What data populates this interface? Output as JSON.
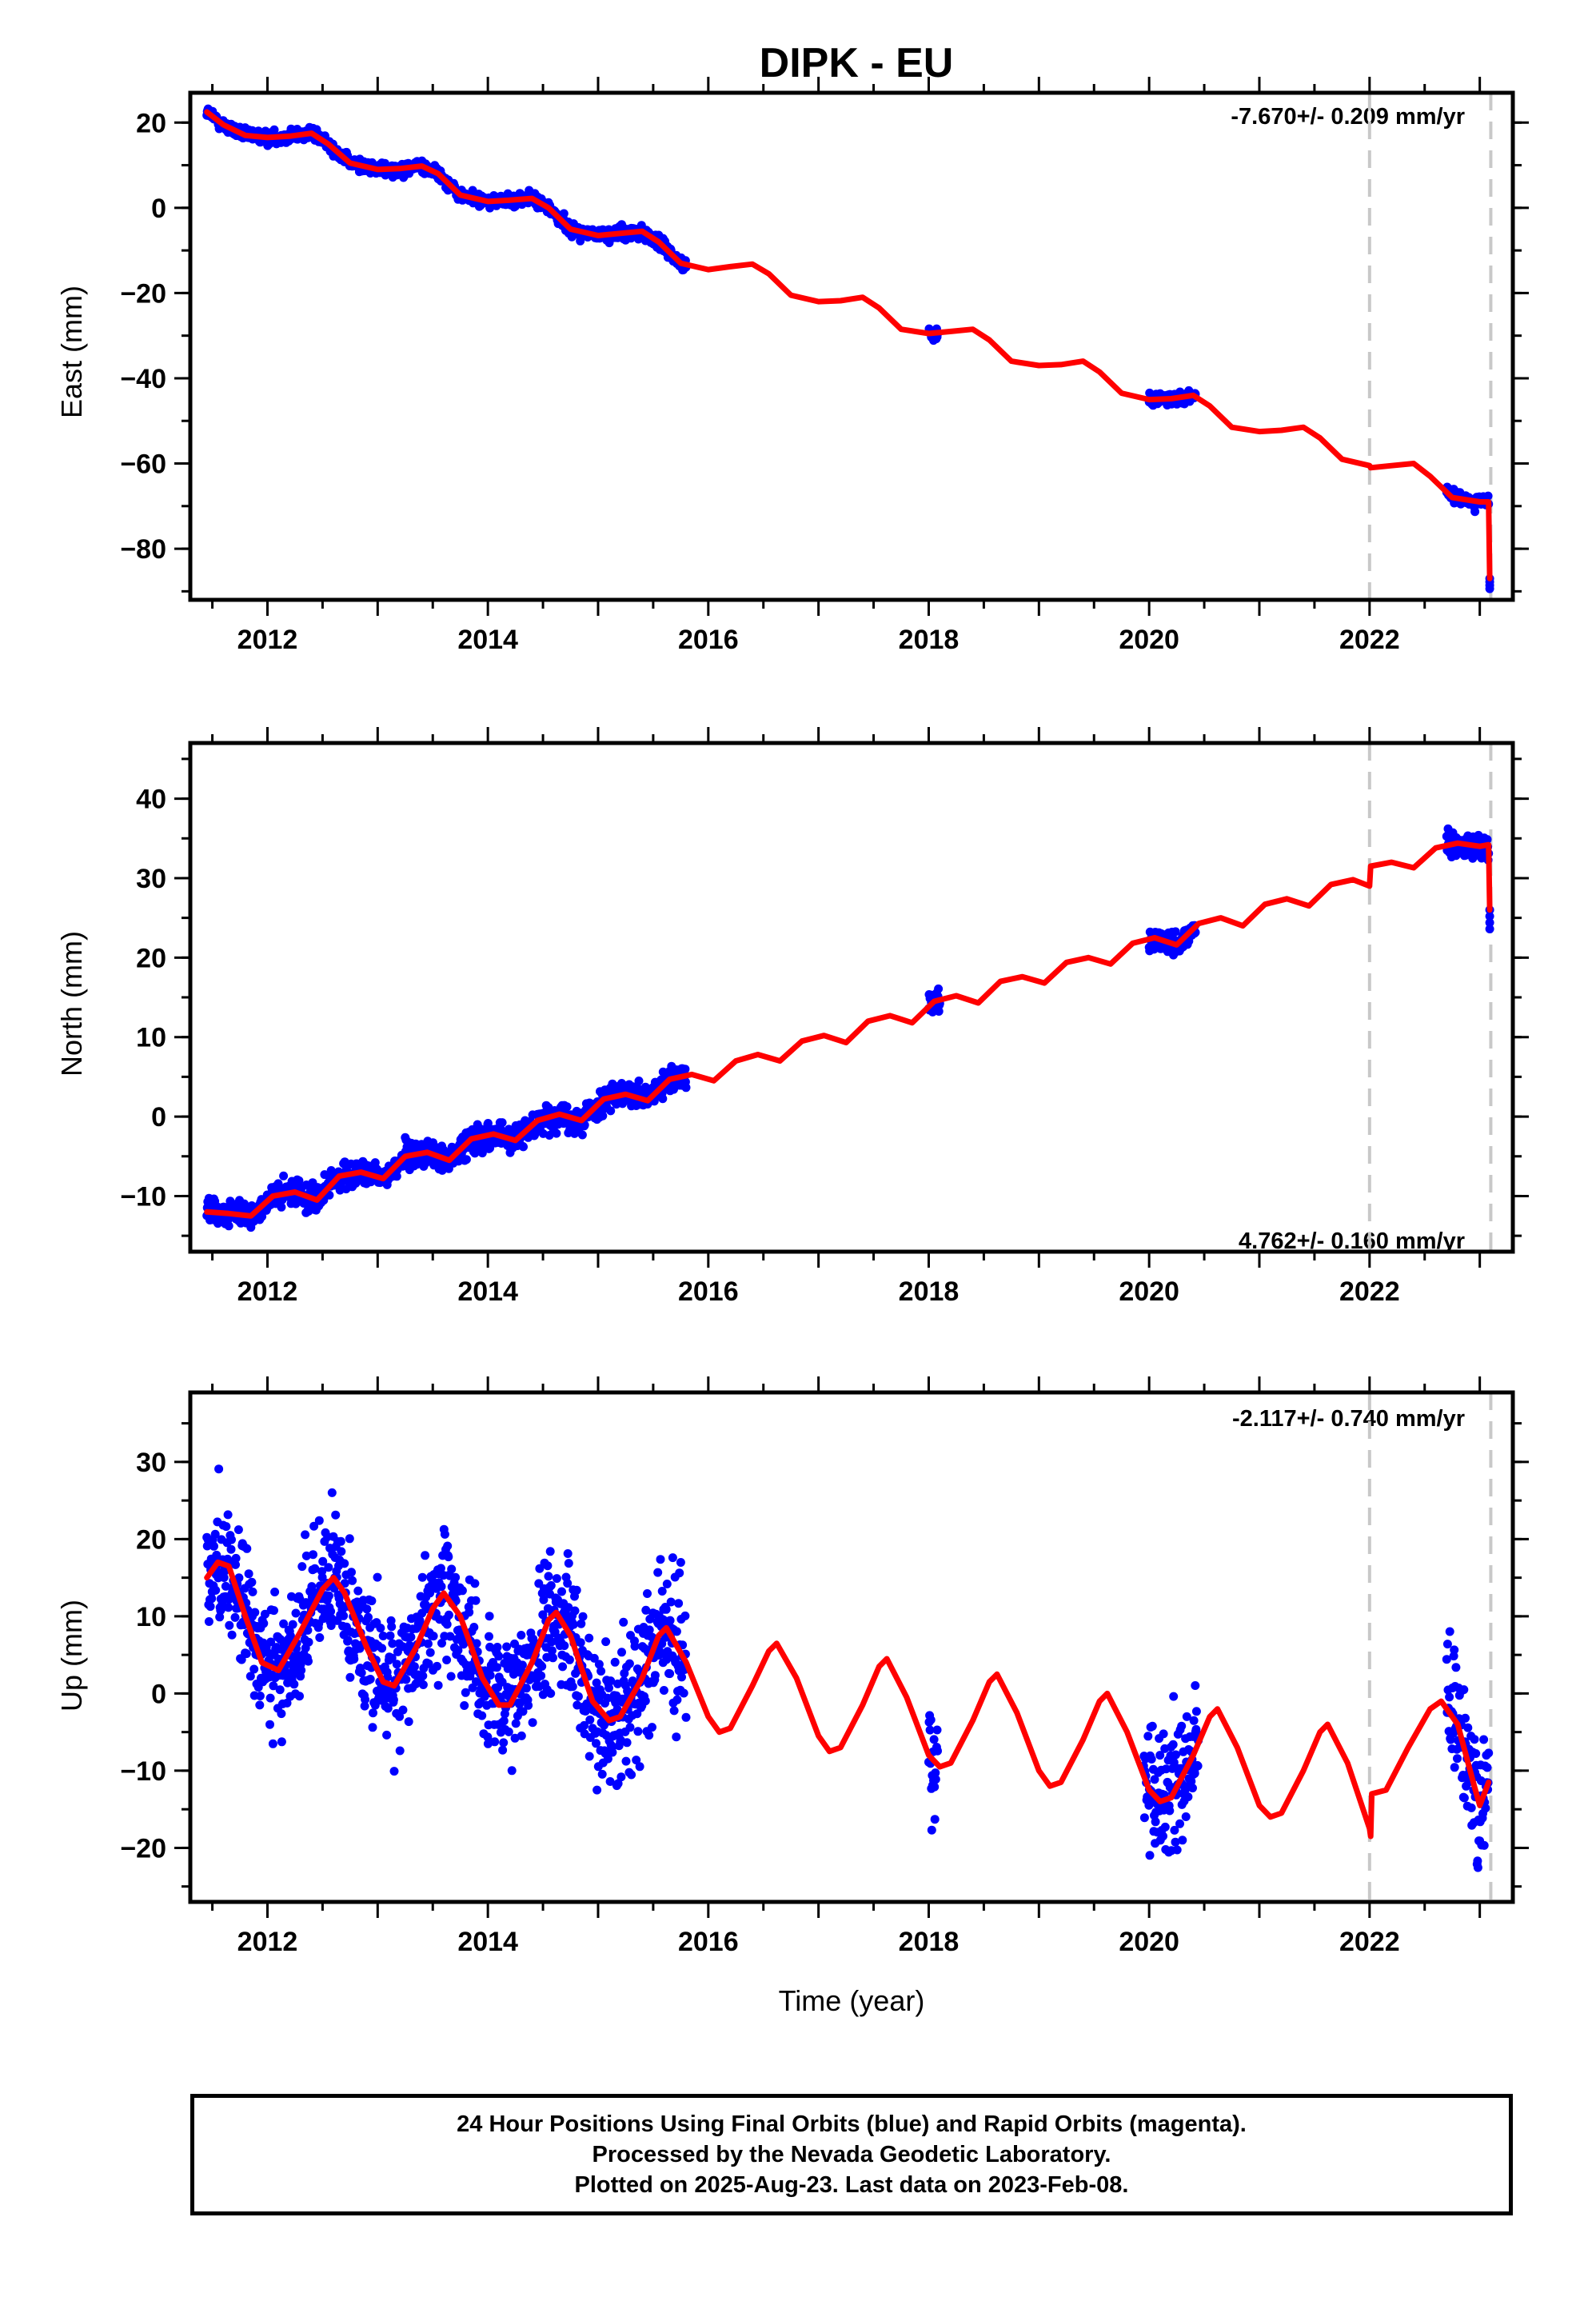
{
  "chart_data": {
    "type": "scatter",
    "title": "DIPK - EU",
    "xlabel": "Time (year)",
    "x_ticks": [
      2012,
      2014,
      2016,
      2018,
      2020,
      2022
    ],
    "xlim": [
      2011.3,
      2023.3
    ],
    "dashed_lines_x": [
      2022.0,
      2023.1
    ],
    "colors": {
      "data": "#0000ff",
      "model": "#ff0000",
      "dashed": "#c8c8c8"
    },
    "panels": [
      {
        "name": "east",
        "ylabel": "East (mm)",
        "ylim": [
          -92,
          27
        ],
        "y_ticks": [
          20,
          0,
          -20,
          -40,
          -60,
          -80
        ],
        "rate": "-7.670+/- 0.209 mm/yr",
        "rate_position": "top-right",
        "model": [
          [
            2011.45,
            22.5
          ],
          [
            2011.6,
            19.5
          ],
          [
            2011.8,
            17.0
          ],
          [
            2012.0,
            16.5
          ],
          [
            2012.2,
            16.8
          ],
          [
            2012.4,
            17.5
          ],
          [
            2012.55,
            15.0
          ],
          [
            2012.75,
            10.5
          ],
          [
            2013.0,
            9.0
          ],
          [
            2013.2,
            9.2
          ],
          [
            2013.4,
            9.8
          ],
          [
            2013.55,
            8.0
          ],
          [
            2013.75,
            3.0
          ],
          [
            2014.0,
            1.5
          ],
          [
            2014.2,
            1.8
          ],
          [
            2014.4,
            2.2
          ],
          [
            2014.55,
            0.0
          ],
          [
            2014.75,
            -5.0
          ],
          [
            2015.0,
            -6.5
          ],
          [
            2015.2,
            -6.0
          ],
          [
            2015.4,
            -5.5
          ],
          [
            2015.55,
            -8.0
          ],
          [
            2015.75,
            -13.0
          ],
          [
            2016.0,
            -14.5
          ],
          [
            2016.2,
            -13.8
          ],
          [
            2016.4,
            -13.2
          ],
          [
            2016.55,
            -15.5
          ],
          [
            2016.75,
            -20.5
          ],
          [
            2017.0,
            -22.0
          ],
          [
            2017.2,
            -21.8
          ],
          [
            2017.4,
            -21.0
          ],
          [
            2017.55,
            -23.5
          ],
          [
            2017.75,
            -28.5
          ],
          [
            2018.0,
            -29.5
          ],
          [
            2018.2,
            -29.0
          ],
          [
            2018.4,
            -28.5
          ],
          [
            2018.55,
            -31.0
          ],
          [
            2018.75,
            -36.0
          ],
          [
            2019.0,
            -37.0
          ],
          [
            2019.2,
            -36.8
          ],
          [
            2019.4,
            -36.0
          ],
          [
            2019.55,
            -38.5
          ],
          [
            2019.75,
            -43.5
          ],
          [
            2020.0,
            -45.0
          ],
          [
            2020.2,
            -44.8
          ],
          [
            2020.4,
            -44.0
          ],
          [
            2020.55,
            -46.5
          ],
          [
            2020.75,
            -51.5
          ],
          [
            2021.0,
            -52.5
          ],
          [
            2021.2,
            -52.2
          ],
          [
            2021.4,
            -51.5
          ],
          [
            2021.55,
            -54.0
          ],
          [
            2021.75,
            -59.0
          ],
          [
            2022.0,
            -60.5
          ],
          [
            2022.01,
            -61.0
          ],
          [
            2022.2,
            -60.5
          ],
          [
            2022.4,
            -60.0
          ],
          [
            2022.55,
            -63.0
          ],
          [
            2022.75,
            -68.0
          ],
          [
            2023.0,
            -69.0
          ],
          [
            2023.08,
            -69.0
          ],
          [
            2023.09,
            -87.0
          ]
        ],
        "observed_spans": [
          [
            2011.45,
            2015.8
          ],
          [
            2018.0,
            2018.08
          ],
          [
            2020.0,
            2020.42
          ],
          [
            2022.7,
            2023.08
          ]
        ],
        "noise_mm": 1.3
      },
      {
        "name": "north",
        "ylabel": "North (mm)",
        "ylim": [
          -17,
          47
        ],
        "y_ticks": [
          40,
          30,
          20,
          10,
          0,
          -10
        ],
        "rate": "4.762+/- 0.160 mm/yr",
        "rate_position": "bottom-right",
        "model": [
          [
            2011.45,
            -12.0
          ],
          [
            2011.65,
            -12.2
          ],
          [
            2011.85,
            -12.5
          ],
          [
            2012.05,
            -10.0
          ],
          [
            2012.25,
            -9.5
          ],
          [
            2012.45,
            -10.5
          ],
          [
            2012.65,
            -7.5
          ],
          [
            2012.85,
            -7.0
          ],
          [
            2013.05,
            -7.8
          ],
          [
            2013.25,
            -5.0
          ],
          [
            2013.45,
            -4.5
          ],
          [
            2013.65,
            -5.5
          ],
          [
            2013.85,
            -2.8
          ],
          [
            2014.05,
            -2.2
          ],
          [
            2014.25,
            -3.0
          ],
          [
            2014.45,
            -0.5
          ],
          [
            2014.65,
            0.3
          ],
          [
            2014.85,
            -0.5
          ],
          [
            2015.05,
            2.2
          ],
          [
            2015.25,
            2.8
          ],
          [
            2015.45,
            2.0
          ],
          [
            2015.65,
            4.7
          ],
          [
            2015.85,
            5.3
          ],
          [
            2016.05,
            4.5
          ],
          [
            2016.25,
            7.0
          ],
          [
            2016.45,
            7.8
          ],
          [
            2016.65,
            7.0
          ],
          [
            2016.85,
            9.5
          ],
          [
            2017.05,
            10.2
          ],
          [
            2017.25,
            9.3
          ],
          [
            2017.45,
            12.0
          ],
          [
            2017.65,
            12.7
          ],
          [
            2017.85,
            11.8
          ],
          [
            2018.05,
            14.5
          ],
          [
            2018.25,
            15.2
          ],
          [
            2018.45,
            14.3
          ],
          [
            2018.65,
            17.0
          ],
          [
            2018.85,
            17.6
          ],
          [
            2019.05,
            16.8
          ],
          [
            2019.25,
            19.4
          ],
          [
            2019.45,
            20.0
          ],
          [
            2019.65,
            19.2
          ],
          [
            2019.85,
            21.8
          ],
          [
            2020.05,
            22.5
          ],
          [
            2020.25,
            21.6
          ],
          [
            2020.45,
            24.3
          ],
          [
            2020.65,
            25.0
          ],
          [
            2020.85,
            24.0
          ],
          [
            2021.05,
            26.7
          ],
          [
            2021.25,
            27.4
          ],
          [
            2021.45,
            26.5
          ],
          [
            2021.65,
            29.2
          ],
          [
            2021.85,
            29.8
          ],
          [
            2022.0,
            29.0
          ],
          [
            2022.01,
            31.5
          ],
          [
            2022.2,
            32.0
          ],
          [
            2022.4,
            31.3
          ],
          [
            2022.6,
            33.8
          ],
          [
            2022.8,
            34.4
          ],
          [
            2023.0,
            34.0
          ],
          [
            2023.08,
            34.2
          ],
          [
            2023.09,
            26.0
          ]
        ],
        "observed_spans": [
          [
            2011.45,
            2015.8
          ],
          [
            2018.0,
            2018.1
          ],
          [
            2020.0,
            2020.42
          ],
          [
            2022.7,
            2023.08
          ]
        ],
        "noise_mm": 1.4
      },
      {
        "name": "up",
        "ylabel": "Up (mm)",
        "ylim": [
          -27,
          39
        ],
        "y_ticks": [
          30,
          20,
          10,
          0,
          -10,
          -20
        ],
        "rate": "-2.117+/- 0.740 mm/yr",
        "rate_position": "top-right",
        "model": [
          [
            2011.45,
            15.0
          ],
          [
            2011.55,
            17.0
          ],
          [
            2011.65,
            16.5
          ],
          [
            2011.8,
            10.0
          ],
          [
            2011.95,
            4.0
          ],
          [
            2012.1,
            3.0
          ],
          [
            2012.3,
            8.0
          ],
          [
            2012.5,
            13.5
          ],
          [
            2012.6,
            15.0
          ],
          [
            2012.7,
            13.0
          ],
          [
            2012.9,
            6.0
          ],
          [
            2013.05,
            1.5
          ],
          [
            2013.15,
            1.0
          ],
          [
            2013.35,
            6.0
          ],
          [
            2013.5,
            11.0
          ],
          [
            2013.6,
            13.0
          ],
          [
            2013.75,
            10.0
          ],
          [
            2013.95,
            2.0
          ],
          [
            2014.1,
            -1.5
          ],
          [
            2014.2,
            -1.5
          ],
          [
            2014.4,
            4.0
          ],
          [
            2014.55,
            9.5
          ],
          [
            2014.62,
            10.5
          ],
          [
            2014.75,
            7.5
          ],
          [
            2014.95,
            -1.0
          ],
          [
            2015.1,
            -3.5
          ],
          [
            2015.2,
            -3.0
          ],
          [
            2015.4,
            2.0
          ],
          [
            2015.55,
            7.5
          ],
          [
            2015.62,
            8.5
          ],
          [
            2015.8,
            4.0
          ],
          [
            2016.0,
            -3.0
          ],
          [
            2016.1,
            -5.0
          ],
          [
            2016.2,
            -4.5
          ],
          [
            2016.4,
            1.0
          ],
          [
            2016.55,
            5.5
          ],
          [
            2016.62,
            6.5
          ],
          [
            2016.8,
            2.0
          ],
          [
            2017.0,
            -5.5
          ],
          [
            2017.1,
            -7.5
          ],
          [
            2017.2,
            -7.0
          ],
          [
            2017.4,
            -1.5
          ],
          [
            2017.55,
            3.5
          ],
          [
            2017.62,
            4.5
          ],
          [
            2017.8,
            -0.5
          ],
          [
            2018.0,
            -8.0
          ],
          [
            2018.1,
            -9.5
          ],
          [
            2018.2,
            -9.0
          ],
          [
            2018.4,
            -3.5
          ],
          [
            2018.55,
            1.5
          ],
          [
            2018.62,
            2.5
          ],
          [
            2018.8,
            -2.5
          ],
          [
            2019.0,
            -10.0
          ],
          [
            2019.1,
            -12.0
          ],
          [
            2019.2,
            -11.5
          ],
          [
            2019.4,
            -6.0
          ],
          [
            2019.55,
            -1.0
          ],
          [
            2019.62,
            0.0
          ],
          [
            2019.8,
            -5.0
          ],
          [
            2020.0,
            -12.5
          ],
          [
            2020.1,
            -14.0
          ],
          [
            2020.2,
            -13.5
          ],
          [
            2020.4,
            -8.0
          ],
          [
            2020.55,
            -3.0
          ],
          [
            2020.62,
            -2.0
          ],
          [
            2020.8,
            -7.0
          ],
          [
            2021.0,
            -14.5
          ],
          [
            2021.1,
            -16.0
          ],
          [
            2021.2,
            -15.5
          ],
          [
            2021.4,
            -10.0
          ],
          [
            2021.55,
            -5.0
          ],
          [
            2021.62,
            -4.0
          ],
          [
            2021.8,
            -9.0
          ],
          [
            2022.0,
            -17.5
          ],
          [
            2022.01,
            -18.5
          ],
          [
            2022.02,
            -13.0
          ],
          [
            2022.15,
            -12.5
          ],
          [
            2022.35,
            -7.0
          ],
          [
            2022.55,
            -2.0
          ],
          [
            2022.65,
            -1.0
          ],
          [
            2022.8,
            -4.0
          ],
          [
            2022.95,
            -12.0
          ],
          [
            2023.0,
            -14.5
          ],
          [
            2023.08,
            -11.5
          ]
        ],
        "observed_spans": [
          [
            2011.45,
            2015.8
          ],
          [
            2018.0,
            2018.08
          ],
          [
            2019.95,
            2020.45
          ],
          [
            2022.7,
            2023.08
          ]
        ],
        "noise_mm": 6.0
      }
    ]
  },
  "footer": {
    "line1": "24 Hour Positions Using Final Orbits (blue) and Rapid Orbits (magenta).",
    "line2": "Processed by the Nevada Geodetic Laboratory.",
    "line3": "Plotted on 2025-Aug-23. Last data on 2023-Feb-08."
  }
}
